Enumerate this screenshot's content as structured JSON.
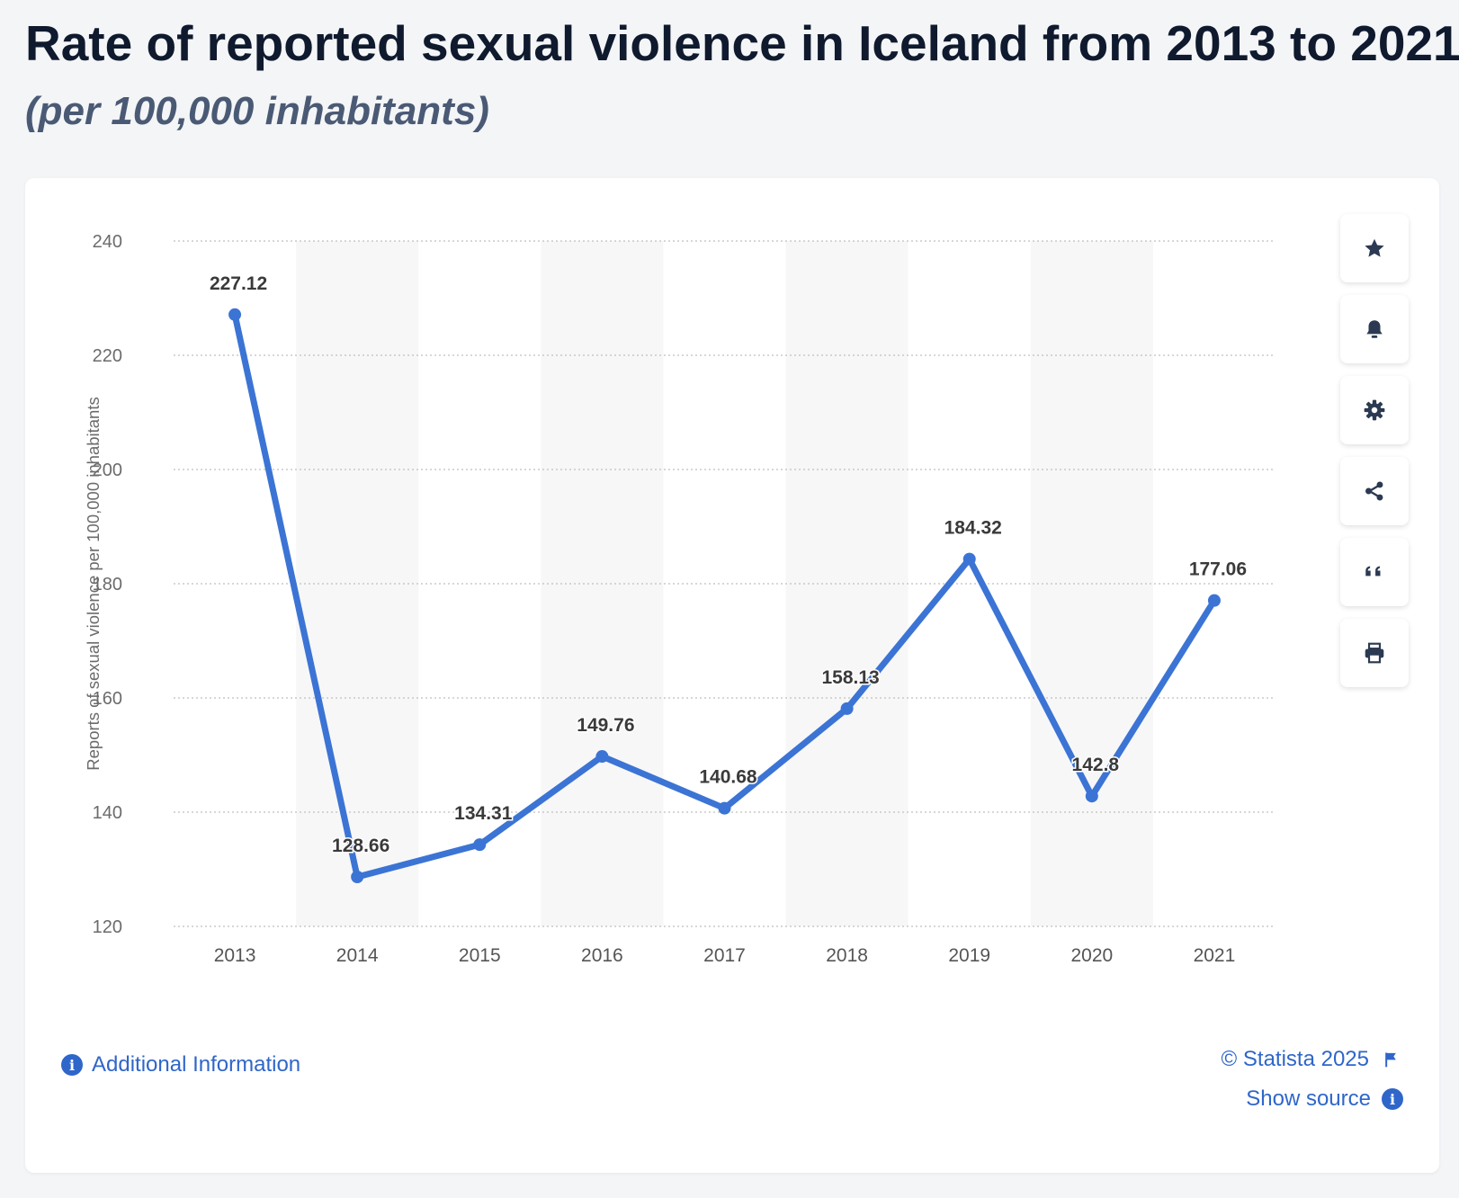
{
  "page": {
    "title": "Rate of reported sexual violence in Iceland from 2013 to 2021",
    "subtitle": "(per 100,000 inhabitants)"
  },
  "colors": {
    "line": "#3b74d4",
    "band": "#f7f7f8",
    "grid": "#bfbfbf",
    "link": "#2f66c9",
    "icon": "#2b3a52"
  },
  "chart_data": {
    "type": "line",
    "title": "Rate of reported sexual violence in Iceland from 2013 to 2021",
    "subtitle": "(per 100,000 inhabitants)",
    "xlabel": "",
    "ylabel": "Reports of sexual violence per 100,000 inhabitants",
    "categories": [
      "2013",
      "2014",
      "2015",
      "2016",
      "2017",
      "2018",
      "2019",
      "2020",
      "2021"
    ],
    "series": [
      {
        "name": "Reports of sexual violence per 100,000 inhabitants",
        "values": [
          227.12,
          128.66,
          134.31,
          149.76,
          140.68,
          158.13,
          184.32,
          142.8,
          177.06
        ],
        "labels": [
          "227.12",
          "128.66",
          "134.31",
          "149.76",
          "140.68",
          "158.13",
          "184.32",
          "142.8",
          "177.06"
        ]
      }
    ],
    "ylim": [
      120,
      240
    ],
    "yticks": [
      "120",
      "140",
      "160",
      "180",
      "200",
      "220",
      "240"
    ],
    "grid": true,
    "legend": "none"
  },
  "toolbar": [
    {
      "name": "favorite-button",
      "icon": "star-icon"
    },
    {
      "name": "notification-button",
      "icon": "bell-icon"
    },
    {
      "name": "settings-button",
      "icon": "gear-icon"
    },
    {
      "name": "share-button",
      "icon": "share-icon"
    },
    {
      "name": "cite-button",
      "icon": "quote-icon"
    },
    {
      "name": "print-button",
      "icon": "printer-icon"
    }
  ],
  "footer": {
    "copyright": "© Statista 2025",
    "show_source": "Show source",
    "additional_info": "Additional Information"
  }
}
